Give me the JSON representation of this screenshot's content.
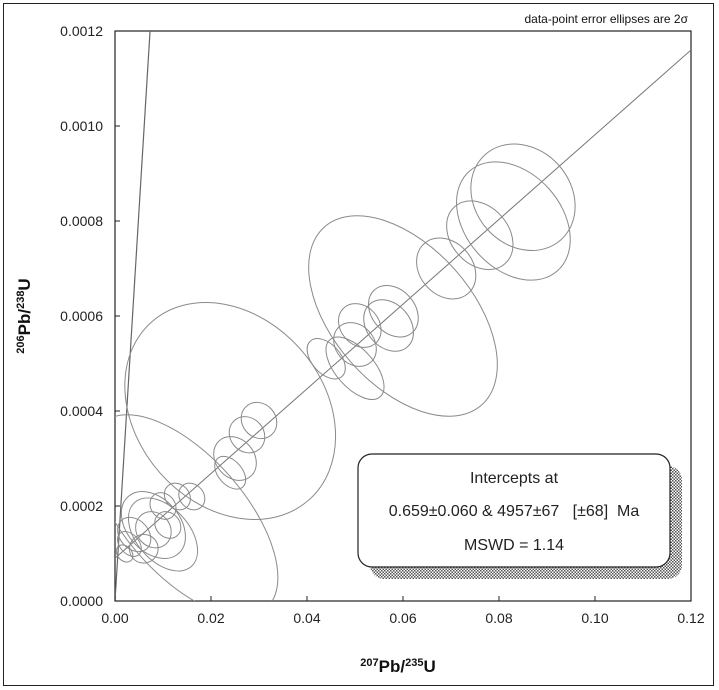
{
  "chart_data": {
    "type": "scatter",
    "title": "",
    "note": "data-point error ellipses are 2σ",
    "xlabel": {
      "sup1": "207",
      "main1": "Pb/",
      "sup2": "235",
      "main2": "U"
    },
    "ylabel": {
      "sup1": "206",
      "main1": "Pb/",
      "sup2": "238",
      "main2": "U"
    },
    "xlim": [
      0,
      0.12
    ],
    "ylim": [
      0,
      0.0012
    ],
    "xticks": [
      "0.00",
      "0.02",
      "0.04",
      "0.06",
      "0.08",
      "0.10",
      "0.12"
    ],
    "yticks": [
      "0.0000",
      "0.0002",
      "0.0004",
      "0.0006",
      "0.0008",
      "0.0010",
      "0.0012"
    ],
    "intercepts_box": {
      "line1": "Intercepts at",
      "line2": "0.659±0.060 & 4957±67   [±68]  Ma",
      "line3": "MSWD = 1.14"
    },
    "regression_line": {
      "x": [
        0,
        0.12
      ],
      "y": [
        9e-05,
        0.00116
      ]
    },
    "concordia": {
      "x": [
        0,
        0.0073
      ],
      "y": [
        0,
        0.0012
      ]
    },
    "ellipses": [
      {
        "x": 0.0145,
        "y": 0.00018,
        "rx": 0.0125,
        "ry": 0.00026
      },
      {
        "x": 0.024,
        "y": 0.0004,
        "rx": 0.0195,
        "ry": 0.00025
      },
      {
        "x": 0.06,
        "y": 0.0006,
        "rx": 0.0145,
        "ry": 0.00025
      },
      {
        "x": 0.083,
        "y": 0.0008,
        "rx": 0.01,
        "ry": 0.00014
      },
      {
        "x": 0.085,
        "y": 0.00085,
        "rx": 0.01,
        "ry": 0.00012
      },
      {
        "x": 0.076,
        "y": 0.00077,
        "rx": 0.006,
        "ry": 8e-05
      },
      {
        "x": 0.069,
        "y": 0.0007,
        "rx": 0.0055,
        "ry": 7e-05
      },
      {
        "x": 0.058,
        "y": 0.00061,
        "rx": 0.0045,
        "ry": 6e-05
      },
      {
        "x": 0.057,
        "y": 0.00058,
        "rx": 0.0045,
        "ry": 6e-05
      },
      {
        "x": 0.051,
        "y": 0.00058,
        "rx": 0.004,
        "ry": 5e-05
      },
      {
        "x": 0.05,
        "y": 0.00054,
        "rx": 0.004,
        "ry": 5e-05
      },
      {
        "x": 0.05,
        "y": 0.00049,
        "rx": 0.004,
        "ry": 8e-05
      },
      {
        "x": 0.044,
        "y": 0.00051,
        "rx": 0.003,
        "ry": 5e-05
      },
      {
        "x": 0.03,
        "y": 0.00038,
        "rx": 0.0035,
        "ry": 4e-05
      },
      {
        "x": 0.0275,
        "y": 0.00035,
        "rx": 0.0035,
        "ry": 4e-05
      },
      {
        "x": 0.025,
        "y": 0.0003,
        "rx": 0.004,
        "ry": 5e-05
      },
      {
        "x": 0.024,
        "y": 0.00027,
        "rx": 0.0025,
        "ry": 4e-05
      },
      {
        "x": 0.016,
        "y": 0.00022,
        "rx": 0.0025,
        "ry": 3e-05
      },
      {
        "x": 0.013,
        "y": 0.00022,
        "rx": 0.0025,
        "ry": 3e-05
      },
      {
        "x": 0.01,
        "y": 0.0002,
        "rx": 0.0025,
        "ry": 3e-05
      },
      {
        "x": 0.008,
        "y": 0.00016,
        "rx": 0.0055,
        "ry": 8e-05
      },
      {
        "x": 0.01,
        "y": 0.00014,
        "rx": 0.0055,
        "ry": 9e-05
      },
      {
        "x": 0.008,
        "y": 0.00015,
        "rx": 0.0035,
        "ry": 4e-05
      },
      {
        "x": 0.004,
        "y": 0.00014,
        "rx": 0.003,
        "ry": 4e-05
      },
      {
        "x": 0.003,
        "y": 0.00012,
        "rx": 0.002,
        "ry": 3e-05
      },
      {
        "x": 0.002,
        "y": 0.0001,
        "rx": 0.0015,
        "ry": 2e-05
      },
      {
        "x": 0.011,
        "y": 0.00016,
        "rx": 0.0025,
        "ry": 3e-05
      },
      {
        "x": 0.006,
        "y": 0.00011,
        "rx": 0.003,
        "ry": 3e-05
      }
    ]
  }
}
